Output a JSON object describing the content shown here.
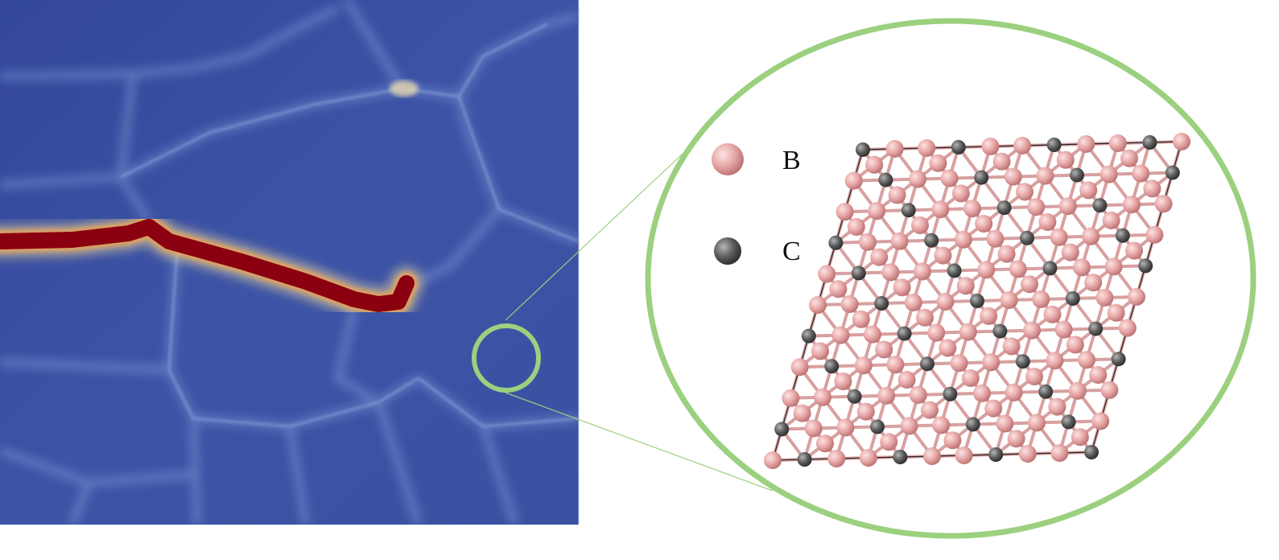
{
  "legend": {
    "items": [
      {
        "label": "B",
        "color": "#e6a5a5"
      },
      {
        "label": "C",
        "color": "#555555"
      }
    ]
  },
  "colors": {
    "field_background": "#3b4fa0",
    "crack": "#8b0010",
    "grain_boundary": "#6f8fcf",
    "magnifier": "#9bd07f",
    "boron": "#e6a5a5",
    "carbon": "#555555",
    "bond": "#d8a0a0"
  }
}
